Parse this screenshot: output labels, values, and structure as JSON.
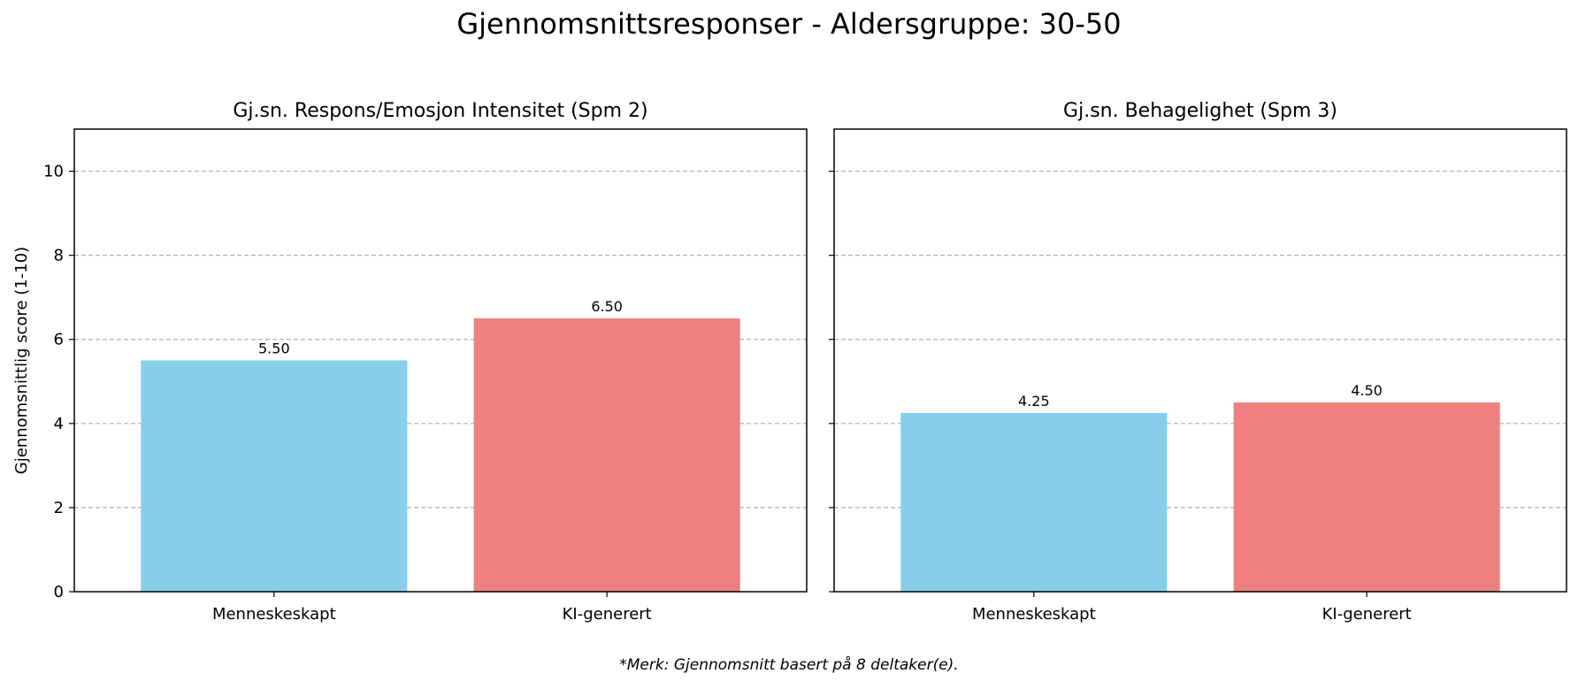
{
  "title": "Gjennomsnittsresponser - Aldersgruppe: 30-50",
  "footnote": "*Merk: Gjennomsnitt basert på 8 deltaker(e).",
  "colors": {
    "human": "#87CEEB",
    "ai": "#F08080",
    "grid": "#b0b0b0"
  },
  "chart_data": [
    {
      "type": "bar",
      "title": "Gj.sn. Respons/Emosjon Intensitet (Spm 2)",
      "ylabel": "Gjennomsnittlig score (1-10)",
      "categories": [
        "Menneskeskapt",
        "KI-generert"
      ],
      "values": [
        5.5,
        6.5
      ],
      "value_labels": [
        "5.50",
        "6.50"
      ],
      "ylim": [
        0,
        11
      ],
      "yticks": [
        0,
        2,
        4,
        6,
        8,
        10
      ],
      "grid": "y-dashed"
    },
    {
      "type": "bar",
      "title": "Gj.sn. Behagelighet (Spm 3)",
      "ylabel": "",
      "categories": [
        "Menneskeskapt",
        "KI-generert"
      ],
      "values": [
        4.25,
        4.5
      ],
      "value_labels": [
        "4.25",
        "4.50"
      ],
      "ylim": [
        0,
        11
      ],
      "yticks": [
        0,
        2,
        4,
        6,
        8,
        10
      ],
      "grid": "y-dashed"
    }
  ]
}
